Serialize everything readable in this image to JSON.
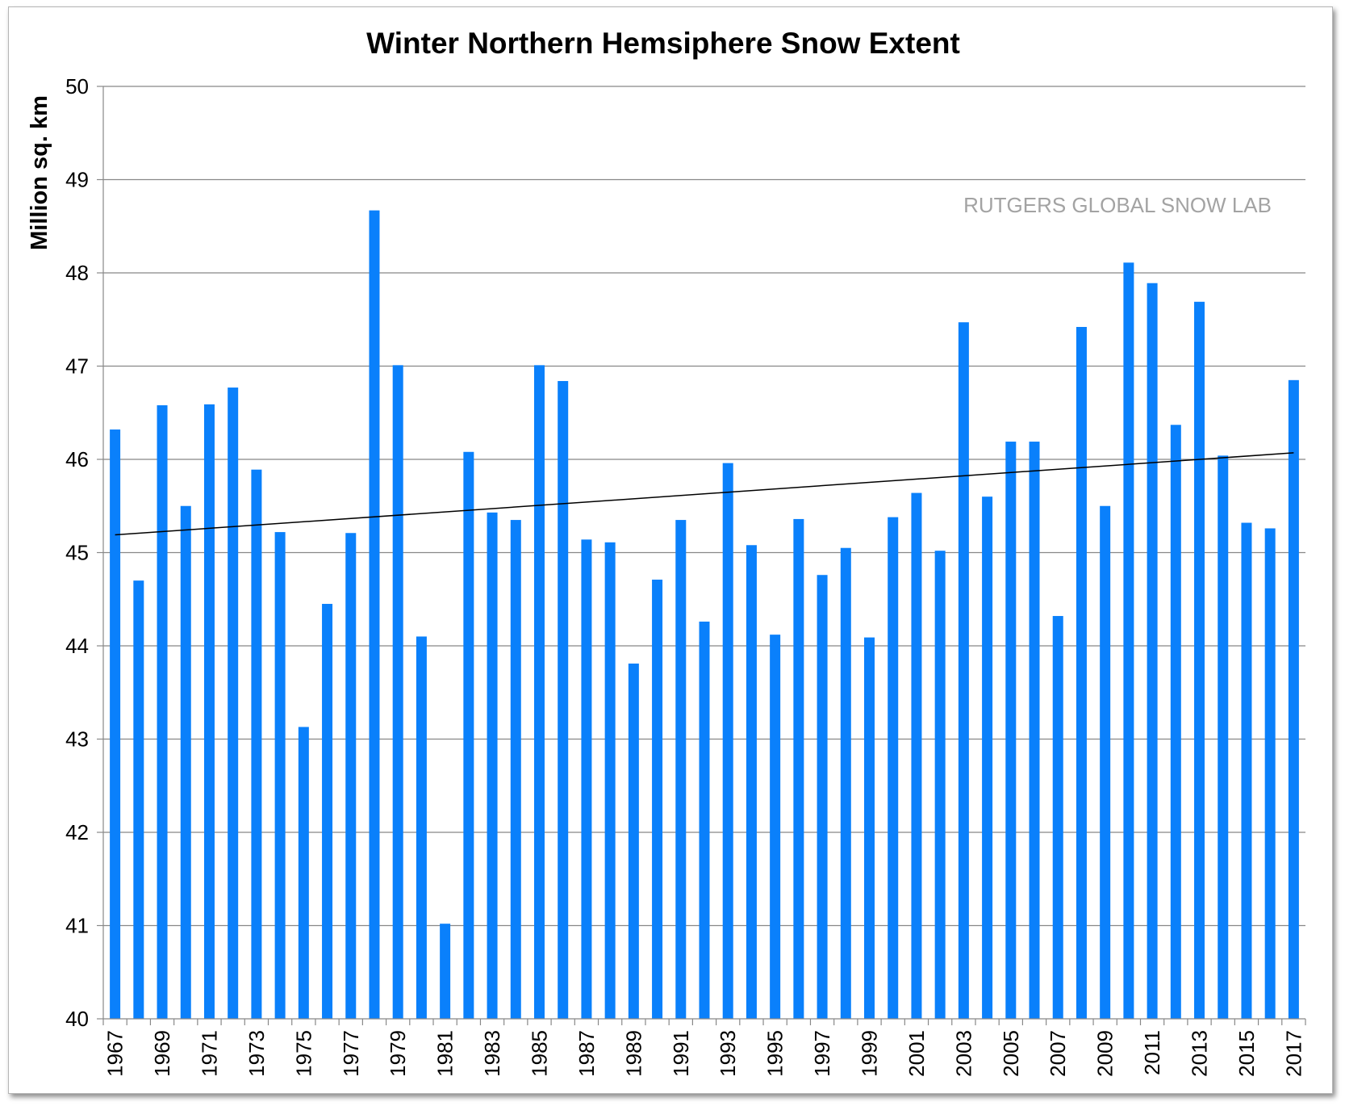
{
  "chart_data": {
    "type": "bar",
    "title": "Winter Northern Hemsiphere Snow Extent",
    "ylabel": "Million sq. km",
    "xlabel": "",
    "watermark": "RUTGERS GLOBAL SNOW LAB",
    "ylim": [
      40,
      50
    ],
    "yticks": [
      "40",
      "41",
      "42",
      "43",
      "44",
      "45",
      "46",
      "47",
      "48",
      "49",
      "50"
    ],
    "grid": true,
    "bar_color": "#0a80fb",
    "categories": [
      1967,
      1968,
      1969,
      1970,
      1971,
      1972,
      1973,
      1974,
      1975,
      1976,
      1977,
      1978,
      1979,
      1980,
      1981,
      1982,
      1983,
      1984,
      1985,
      1986,
      1987,
      1988,
      1989,
      1990,
      1991,
      1992,
      1993,
      1994,
      1995,
      1996,
      1997,
      1998,
      1999,
      2000,
      2001,
      2002,
      2003,
      2004,
      2005,
      2006,
      2007,
      2008,
      2009,
      2010,
      2011,
      2012,
      2013,
      2014,
      2015,
      2016,
      2017
    ],
    "x_tick_labels": [
      "1967",
      "1969",
      "1971",
      "1973",
      "1975",
      "1977",
      "1979",
      "1981",
      "1983",
      "1985",
      "1987",
      "1989",
      "1991",
      "1993",
      "1995",
      "1997",
      "1999",
      "2001",
      "2003",
      "2005",
      "2007",
      "2009",
      "2011",
      "2013",
      "2015",
      "2017"
    ],
    "values": [
      46.32,
      44.7,
      46.58,
      45.5,
      46.59,
      46.77,
      45.89,
      45.22,
      43.13,
      44.45,
      45.21,
      48.67,
      47.01,
      44.1,
      41.02,
      46.08,
      45.43,
      45.35,
      47.01,
      46.84,
      45.14,
      45.11,
      43.81,
      44.71,
      45.35,
      44.26,
      45.96,
      45.08,
      44.12,
      45.36,
      44.76,
      45.05,
      44.09,
      45.38,
      45.64,
      45.02,
      47.47,
      45.6,
      46.19,
      46.19,
      44.32,
      47.42,
      45.5,
      48.11,
      47.89,
      46.37,
      47.69,
      46.04,
      45.32,
      45.26,
      46.85
    ],
    "trendline": {
      "start": 45.19,
      "end": 46.07,
      "color": "#000000"
    }
  }
}
